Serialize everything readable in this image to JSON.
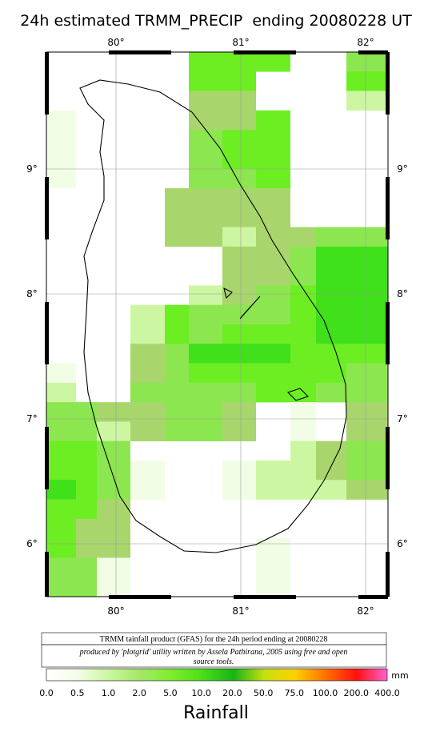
{
  "title": "24h estimated TRMM_PRECIP  ending 20080228 UT",
  "axes": {
    "lon_labels": [
      "80°",
      "81°",
      "82°"
    ],
    "lat_labels": [
      "9°",
      "8°",
      "7°",
      "6°"
    ]
  },
  "caption": {
    "line1": "TRMM tainfall product (GFAS) for the 24h period ending at 20080228",
    "line2": "produced by 'plotgrid' utility written by Assela Pathirana, 2005 using free and open",
    "line3": "source tools."
  },
  "colorbar": {
    "labels": [
      "0.0",
      "0.5",
      "1.0",
      "2.0",
      "5.0",
      "10.0",
      "20.0",
      "50.0",
      "75.0",
      "100.0",
      "200.0",
      "400.0"
    ],
    "unit": "mm",
    "title": "Rainfall"
  }
}
